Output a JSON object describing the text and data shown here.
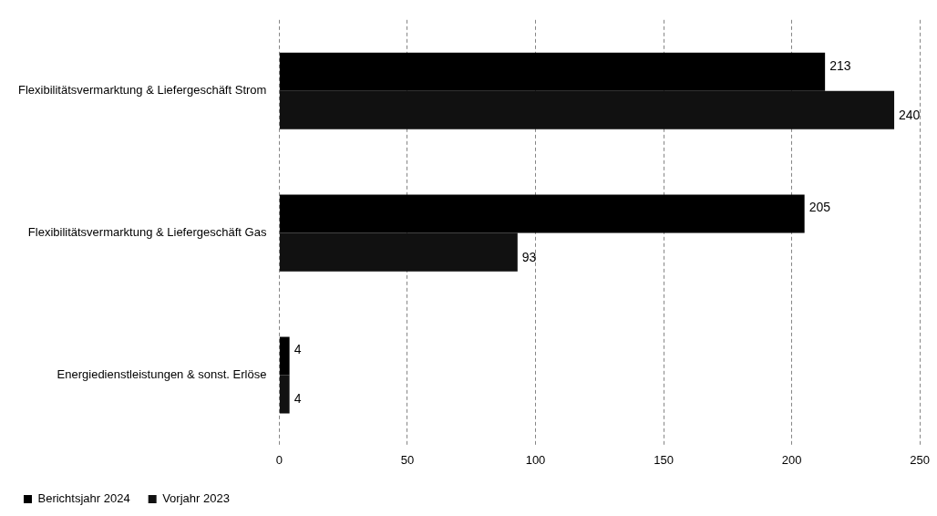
{
  "chart_data": {
    "type": "bar",
    "orientation": "horizontal",
    "categories": [
      "Flexibilitätsvermarktung & Liefergeschäft Strom",
      "Flexibilitätsvermarktung & Liefergeschäft Gas",
      "Energiedienstleistungen & sonst. Erlöse"
    ],
    "series": [
      {
        "name": "Berichtsjahr 2024",
        "color": "#000000",
        "values": [
          213,
          205,
          4
        ]
      },
      {
        "name": "Vorjahr 2023",
        "color": "#111111",
        "values": [
          240,
          93,
          4
        ]
      }
    ],
    "xlim": [
      0,
      250
    ],
    "xticks": [
      0,
      50,
      100,
      150,
      200,
      250
    ],
    "grid": "x",
    "legend": "bottom",
    "data_labels": true
  }
}
